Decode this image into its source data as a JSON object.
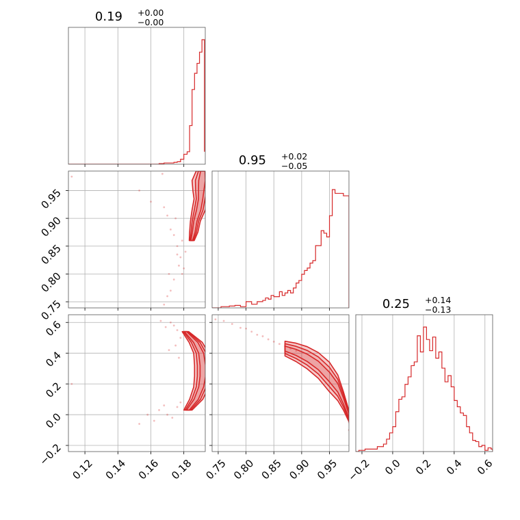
{
  "chart_data": {
    "type": "corner",
    "color": "#d62728",
    "grid": true,
    "parameters": [
      {
        "value": "0.19",
        "upper": "+0.00",
        "lower": "−0.00",
        "range": [
          0.11,
          0.193
        ],
        "ticks": [
          0.12,
          0.14,
          0.16,
          0.18
        ],
        "tick_labels": [
          "0.12",
          "0.14",
          "0.16",
          "0.18"
        ]
      },
      {
        "value": "0.95",
        "upper": "+0.02",
        "lower": "−0.05",
        "range": [
          0.739,
          0.985
        ],
        "ticks": [
          0.75,
          0.8,
          0.85,
          0.9,
          0.95
        ],
        "tick_labels": [
          "0.75",
          "0.80",
          "0.85",
          "0.90",
          "0.95"
        ]
      },
      {
        "value": "0.25",
        "upper": "+0.14",
        "lower": "−0.13",
        "range": [
          -0.24,
          0.65
        ],
        "ticks": [
          -0.2,
          0.0,
          0.2,
          0.4,
          0.6
        ],
        "tick_labels": [
          "−0.2",
          "0.0",
          "0.2",
          "0.4",
          "0.6"
        ]
      }
    ],
    "histograms": [
      {
        "param": 0,
        "bins": [
          [
            0.11,
            0
          ],
          [
            0.13,
            0
          ],
          [
            0.15,
            0
          ],
          [
            0.16,
            0
          ],
          [
            0.165,
            0.005
          ],
          [
            0.168,
            0.01
          ],
          [
            0.171,
            0.01
          ],
          [
            0.174,
            0.015
          ],
          [
            0.176,
            0.02
          ],
          [
            0.178,
            0.04
          ],
          [
            0.18,
            0.08
          ],
          [
            0.182,
            0.1
          ],
          [
            0.1835,
            0.31
          ],
          [
            0.185,
            0.6
          ],
          [
            0.1865,
            0.73
          ],
          [
            0.188,
            0.81
          ],
          [
            0.1895,
            0.9
          ],
          [
            0.191,
            1.0
          ],
          [
            0.1925,
            0.1
          ]
        ]
      },
      {
        "param": 1,
        "bins": [
          [
            0.739,
            0
          ],
          [
            0.755,
            0.01
          ],
          [
            0.77,
            0.015
          ],
          [
            0.78,
            0.02
          ],
          [
            0.79,
            0.01
          ],
          [
            0.8,
            0.05
          ],
          [
            0.81,
            0.03
          ],
          [
            0.82,
            0.05
          ],
          [
            0.83,
            0.06
          ],
          [
            0.835,
            0.08
          ],
          [
            0.84,
            0.07
          ],
          [
            0.845,
            0.1
          ],
          [
            0.85,
            0.09
          ],
          [
            0.86,
            0.13
          ],
          [
            0.865,
            0.1
          ],
          [
            0.87,
            0.12
          ],
          [
            0.875,
            0.14
          ],
          [
            0.88,
            0.12
          ],
          [
            0.885,
            0.16
          ],
          [
            0.89,
            0.2
          ],
          [
            0.895,
            0.22
          ],
          [
            0.9,
            0.27
          ],
          [
            0.905,
            0.3
          ],
          [
            0.91,
            0.32
          ],
          [
            0.915,
            0.36
          ],
          [
            0.92,
            0.38
          ],
          [
            0.925,
            0.5
          ],
          [
            0.93,
            0.5
          ],
          [
            0.935,
            0.62
          ],
          [
            0.94,
            0.6
          ],
          [
            0.945,
            0.57
          ],
          [
            0.95,
            0.74
          ],
          [
            0.955,
            0.95
          ],
          [
            0.96,
            0.92
          ],
          [
            0.965,
            0.92
          ],
          [
            0.975,
            0.9
          ],
          [
            0.985,
            0
          ]
        ]
      },
      {
        "param": 2,
        "bins": [
          [
            -0.24,
            0
          ],
          [
            -0.22,
            0.01
          ],
          [
            -0.18,
            0.02
          ],
          [
            -0.14,
            0.02
          ],
          [
            -0.1,
            0.04
          ],
          [
            -0.08,
            0.04
          ],
          [
            -0.06,
            0.06
          ],
          [
            -0.04,
            0.1
          ],
          [
            -0.02,
            0.15
          ],
          [
            0.0,
            0.2
          ],
          [
            0.02,
            0.32
          ],
          [
            0.04,
            0.42
          ],
          [
            0.06,
            0.44
          ],
          [
            0.08,
            0.54
          ],
          [
            0.1,
            0.6
          ],
          [
            0.12,
            0.69
          ],
          [
            0.14,
            0.72
          ],
          [
            0.16,
            0.93
          ],
          [
            0.18,
            0.8
          ],
          [
            0.2,
            1.0
          ],
          [
            0.22,
            0.9
          ],
          [
            0.24,
            0.81
          ],
          [
            0.26,
            0.92
          ],
          [
            0.28,
            0.75
          ],
          [
            0.3,
            0.8
          ],
          [
            0.32,
            0.67
          ],
          [
            0.34,
            0.56
          ],
          [
            0.36,
            0.61
          ],
          [
            0.38,
            0.52
          ],
          [
            0.4,
            0.41
          ],
          [
            0.42,
            0.36
          ],
          [
            0.44,
            0.31
          ],
          [
            0.46,
            0.29
          ],
          [
            0.48,
            0.2
          ],
          [
            0.5,
            0.15
          ],
          [
            0.52,
            0.09
          ],
          [
            0.54,
            0.08
          ],
          [
            0.56,
            0.04
          ],
          [
            0.58,
            0.05
          ],
          [
            0.6,
            0.01
          ],
          [
            0.62,
            0.03
          ],
          [
            0.64,
            0.02
          ],
          [
            0.65,
            0
          ]
        ]
      }
    ],
    "scatter_outliers": {
      "p0_p1": [
        [
          0.112,
          0.975
        ],
        [
          0.153,
          0.95
        ],
        [
          0.16,
          0.93
        ],
        [
          0.168,
          0.92
        ],
        [
          0.17,
          0.905
        ],
        [
          0.172,
          0.88
        ],
        [
          0.174,
          0.87
        ],
        [
          0.176,
          0.835
        ],
        [
          0.178,
          0.83
        ],
        [
          0.177,
          0.815
        ],
        [
          0.179,
          0.8
        ],
        [
          0.18,
          0.81
        ],
        [
          0.181,
          0.84
        ],
        [
          0.174,
          0.79
        ],
        [
          0.172,
          0.77
        ],
        [
          0.17,
          0.76
        ],
        [
          0.168,
          0.745
        ],
        [
          0.171,
          0.8
        ],
        [
          0.176,
          0.85
        ],
        [
          0.179,
          0.86
        ],
        [
          0.175,
          0.9
        ],
        [
          0.167,
          0.98
        ]
      ],
      "p0_p2": [
        [
          0.112,
          0.2
        ],
        [
          0.153,
          -0.06
        ],
        [
          0.158,
          0.0
        ],
        [
          0.162,
          -0.04
        ],
        [
          0.165,
          0.03
        ],
        [
          0.168,
          0.06
        ],
        [
          0.17,
          0.0
        ],
        [
          0.173,
          -0.02
        ],
        [
          0.176,
          0.05
        ],
        [
          0.178,
          0.08
        ],
        [
          0.174,
          0.58
        ],
        [
          0.176,
          0.55
        ],
        [
          0.178,
          0.5
        ],
        [
          0.172,
          0.6
        ],
        [
          0.175,
          0.45
        ],
        [
          0.177,
          0.37
        ],
        [
          0.171,
          0.42
        ],
        [
          0.169,
          0.57
        ],
        [
          0.166,
          0.61
        ]
      ],
      "p1_p2": [
        [
          0.745,
          0.62
        ],
        [
          0.76,
          0.61
        ],
        [
          0.775,
          0.59
        ],
        [
          0.79,
          0.565
        ],
        [
          0.8,
          0.56
        ],
        [
          0.81,
          0.54
        ],
        [
          0.82,
          0.52
        ],
        [
          0.83,
          0.51
        ],
        [
          0.84,
          0.49
        ],
        [
          0.85,
          0.475
        ],
        [
          0.86,
          0.46
        ],
        [
          0.87,
          0.445
        ],
        [
          0.88,
          0.43
        ],
        [
          0.89,
          0.415
        ],
        [
          0.985,
          -0.05
        ],
        [
          0.985,
          -0.1
        ]
      ]
    },
    "density_contours": {
      "p0_p1": {
        "center": [
          [
            0.1915,
            0.985
          ],
          [
            0.191,
            0.968
          ],
          [
            0.1905,
            0.95
          ],
          [
            0.1902,
            0.935
          ],
          [
            0.189,
            0.915
          ],
          [
            0.187,
            0.895
          ],
          [
            0.186,
            0.875
          ],
          [
            0.1848,
            0.86
          ]
        ],
        "half_widths": [
          0.004,
          0.006,
          0.005,
          0.004,
          0.004,
          0.003,
          0.0025,
          0.0015
        ]
      },
      "p0_p2": {
        "center": [
          [
            0.181,
            0.54
          ],
          [
            0.1872,
            0.47
          ],
          [
            0.1905,
            0.4
          ],
          [
            0.1915,
            0.32
          ],
          [
            0.1915,
            0.25
          ],
          [
            0.1905,
            0.18
          ],
          [
            0.1875,
            0.1
          ],
          [
            0.1825,
            0.03
          ]
        ],
        "half_widths": [
          0.002,
          0.004,
          0.0045,
          0.005,
          0.005,
          0.0045,
          0.004,
          0.0025
        ]
      },
      "p1_p2": {
        "center": [
          [
            0.87,
            0.43
          ],
          [
            0.89,
            0.405
          ],
          [
            0.91,
            0.37
          ],
          [
            0.93,
            0.32
          ],
          [
            0.95,
            0.245
          ],
          [
            0.965,
            0.175
          ],
          [
            0.975,
            0.09
          ],
          [
            0.985,
            -0.01
          ]
        ],
        "half_widths": [
          0.008,
          0.01,
          0.012,
          0.014,
          0.016,
          0.014,
          0.01,
          0.006
        ]
      }
    }
  }
}
